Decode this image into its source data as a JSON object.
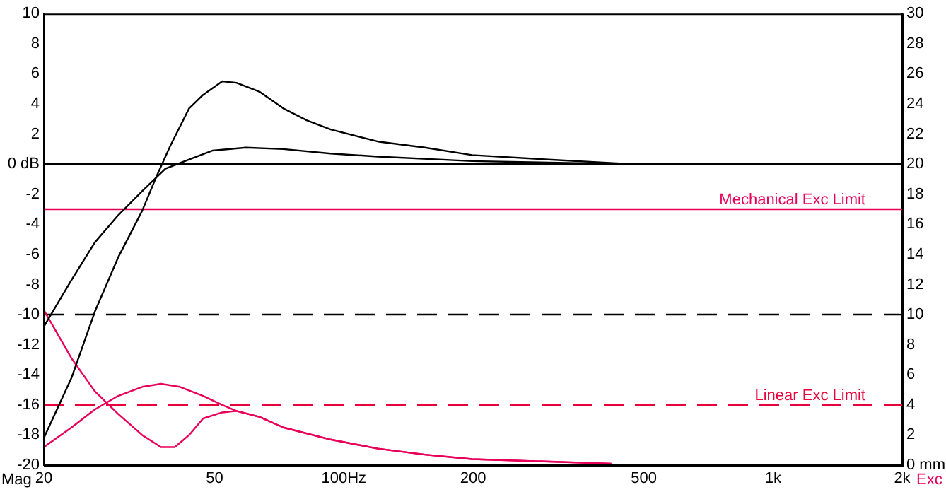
{
  "chart_data": {
    "type": "line",
    "ylabel": "Mag",
    "y2label": "Exc",
    "log": "x",
    "grid": false,
    "legend": false,
    "marker": "none",
    "xlim": [
      20,
      2000
    ],
    "xticks": [
      20,
      50,
      {
        "value": 100,
        "label": "100Hz"
      },
      200,
      500,
      {
        "value": 1000,
        "label": "1k"
      },
      {
        "value": 2000,
        "label": "2k"
      }
    ],
    "ylim": [
      -20,
      10
    ],
    "yticks": [
      -20,
      -18,
      -16,
      -14,
      -12,
      -10,
      -8,
      -6,
      -4,
      -2,
      {
        "value": 0,
        "label": "0 dB"
      },
      2,
      4,
      6,
      8,
      10
    ],
    "y2lim": [
      0,
      30
    ],
    "y2ticks": [
      {
        "value": 0,
        "label": "0 mm"
      },
      2,
      4,
      6,
      8,
      10,
      12,
      14,
      16,
      18,
      20,
      22,
      24,
      26,
      28,
      30
    ],
    "series": [
      {
        "color": "#000000",
        "x": [
          20,
          23.2,
          26.3,
          29.8,
          33.9,
          36.5,
          39.4,
          43.6,
          47,
          52.1,
          56.2,
          63.7,
          72.3,
          82.1,
          93.2,
          120,
          154.5,
          199,
          300,
          470
        ],
        "values": [
          -18.2,
          -14.2,
          -9.8,
          -6.2,
          -3.1,
          -0.9,
          1.2,
          3.7,
          4.6,
          5.5,
          5.4,
          4.8,
          3.7,
          2.9,
          2.3,
          1.5,
          1.1,
          0.6,
          0.3,
          0
        ]
      },
      {
        "color": "#000000",
        "x": [
          20,
          23.2,
          26.3,
          29.8,
          33.9,
          38.4,
          43.6,
          49.5,
          59.1,
          72.3,
          93.2,
          120,
          199,
          300,
          470
        ],
        "values": [
          -10.8,
          -7.7,
          -5.2,
          -3.4,
          -1.8,
          -0.3,
          0.3,
          0.9,
          1.1,
          1,
          0.7,
          0.5,
          0.2,
          0.1,
          0
        ]
      },
      {
        "color": "#e8005a",
        "axis": "y2",
        "x": [
          20,
          23.2,
          26.3,
          29.8,
          33.9,
          37.5,
          40.4,
          43.6,
          47,
          52.1,
          56.2,
          63.7,
          72.3,
          93.2,
          120,
          154.5,
          199,
          420
        ],
        "values": [
          10.3,
          7.1,
          4.9,
          3.4,
          2,
          1.2,
          1.2,
          2,
          3.1,
          3.5,
          3.6,
          3.2,
          2.5,
          1.7,
          1.1,
          0.7,
          0.4,
          0.1
        ]
      },
      {
        "color": "#e8005a",
        "axis": "y2",
        "x": [
          20,
          23.2,
          26.3,
          29.8,
          33.9,
          37.5,
          41.5,
          47,
          52.1,
          56.2,
          63.7,
          72.3,
          93.2,
          120,
          154.5,
          199,
          420
        ],
        "values": [
          1.2,
          2.5,
          3.7,
          4.6,
          5.2,
          5.4,
          5.2,
          4.6,
          4,
          3.6,
          3.2,
          2.5,
          1.7,
          1.1,
          0.7,
          0.4,
          0.1
        ]
      }
    ],
    "ref_lines": [
      {
        "axis": "y",
        "value": 0,
        "color": "#000000",
        "line_style": "solid"
      },
      {
        "axis": "y2",
        "value": 17,
        "label": "Mechanical Exc Limit",
        "color": "#e8005a",
        "line_style": "solid"
      },
      {
        "axis": "y",
        "value": -10,
        "color": "#000000",
        "line_style": "dashed"
      },
      {
        "axis": "y2",
        "value": 4,
        "label": "Linear Exc Limit",
        "color": "#e8003a",
        "line_style": "dashed"
      }
    ]
  }
}
